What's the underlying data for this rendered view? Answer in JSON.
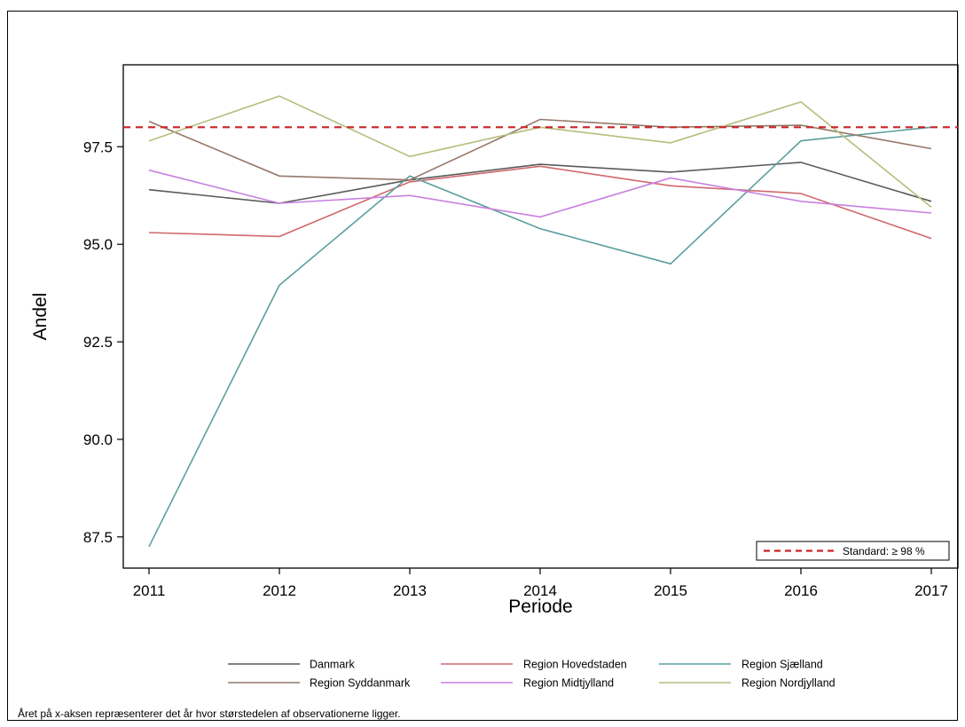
{
  "chart_data": {
    "type": "line",
    "x": [
      2011,
      2012,
      2013,
      2014,
      2015,
      2016,
      2017
    ],
    "xlabel": "Periode",
    "ylabel": "Andel",
    "ylim": [
      86.7,
      99.6
    ],
    "yticks": [
      "87.5",
      "90.0",
      "92.5",
      "95.0",
      "97.5"
    ],
    "xticks": [
      "2011",
      "2012",
      "2013",
      "2014",
      "2015",
      "2016",
      "2017"
    ],
    "grid": false,
    "series": [
      {
        "name": "Danmark",
        "color": "#5a5a5a",
        "values": [
          96.4,
          96.05,
          96.65,
          97.05,
          96.85,
          97.1,
          96.1
        ]
      },
      {
        "name": "Region Hovedstaden",
        "color": "#d0686e",
        "values": [
          95.3,
          95.2,
          96.6,
          97.0,
          96.5,
          96.3,
          95.15
        ]
      },
      {
        "name": "Region Sjælland",
        "color": "#5a9e9e",
        "values": [
          87.25,
          93.95,
          96.75,
          95.4,
          94.5,
          97.65,
          98.0
        ]
      },
      {
        "name": "Region Syddanmark",
        "color": "#94796a",
        "values": [
          98.15,
          96.75,
          96.65,
          98.2,
          98.0,
          98.05,
          97.45
        ]
      },
      {
        "name": "Region Midtjylland",
        "color": "#c97fe0",
        "values": [
          96.9,
          96.05,
          96.25,
          95.7,
          96.7,
          96.1,
          95.8
        ]
      },
      {
        "name": "Region Nordjylland",
        "color": "#b4bd7c",
        "values": [
          97.65,
          98.8,
          97.25,
          98.0,
          97.6,
          98.65,
          95.95
        ]
      }
    ],
    "reference_line": {
      "label": "Standard: ≥ 98 %",
      "value": 98.0,
      "color": "#cc2222",
      "style": "dashed"
    },
    "legend_position": "bottom"
  },
  "footnote": "Året på x-aksen repræsenterer det år hvor størstedelen af observationerne ligger."
}
